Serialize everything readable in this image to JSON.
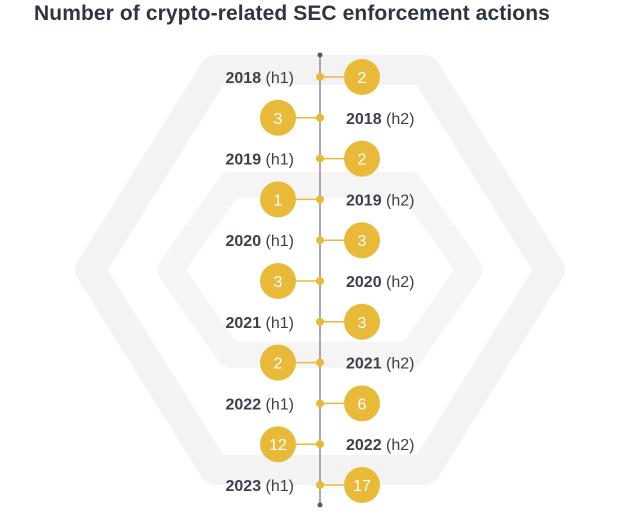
{
  "chart_data": {
    "type": "timeline",
    "title": "Number of crypto-related SEC enforcement actions",
    "points": [
      {
        "year": "2018",
        "half": "(h1)",
        "value": 2
      },
      {
        "year": "2018",
        "half": "(h2)",
        "value": 3
      },
      {
        "year": "2019",
        "half": "(h1)",
        "value": 2
      },
      {
        "year": "2019",
        "half": "(h2)",
        "value": 1
      },
      {
        "year": "2020",
        "half": "(h1)",
        "value": 3
      },
      {
        "year": "2020",
        "half": "(h2)",
        "value": 3
      },
      {
        "year": "2021",
        "half": "(h1)",
        "value": 3
      },
      {
        "year": "2021",
        "half": "(h2)",
        "value": 2
      },
      {
        "year": "2022",
        "half": "(h1)",
        "value": 6
      },
      {
        "year": "2022",
        "half": "(h2)",
        "value": 12
      },
      {
        "year": "2023",
        "half": "(h1)",
        "value": 17
      }
    ],
    "colors": {
      "bubble": "#e9b93a",
      "axis": "#8c8f94",
      "text": "#3b414c",
      "background_shape": "#f3f3f3"
    }
  }
}
